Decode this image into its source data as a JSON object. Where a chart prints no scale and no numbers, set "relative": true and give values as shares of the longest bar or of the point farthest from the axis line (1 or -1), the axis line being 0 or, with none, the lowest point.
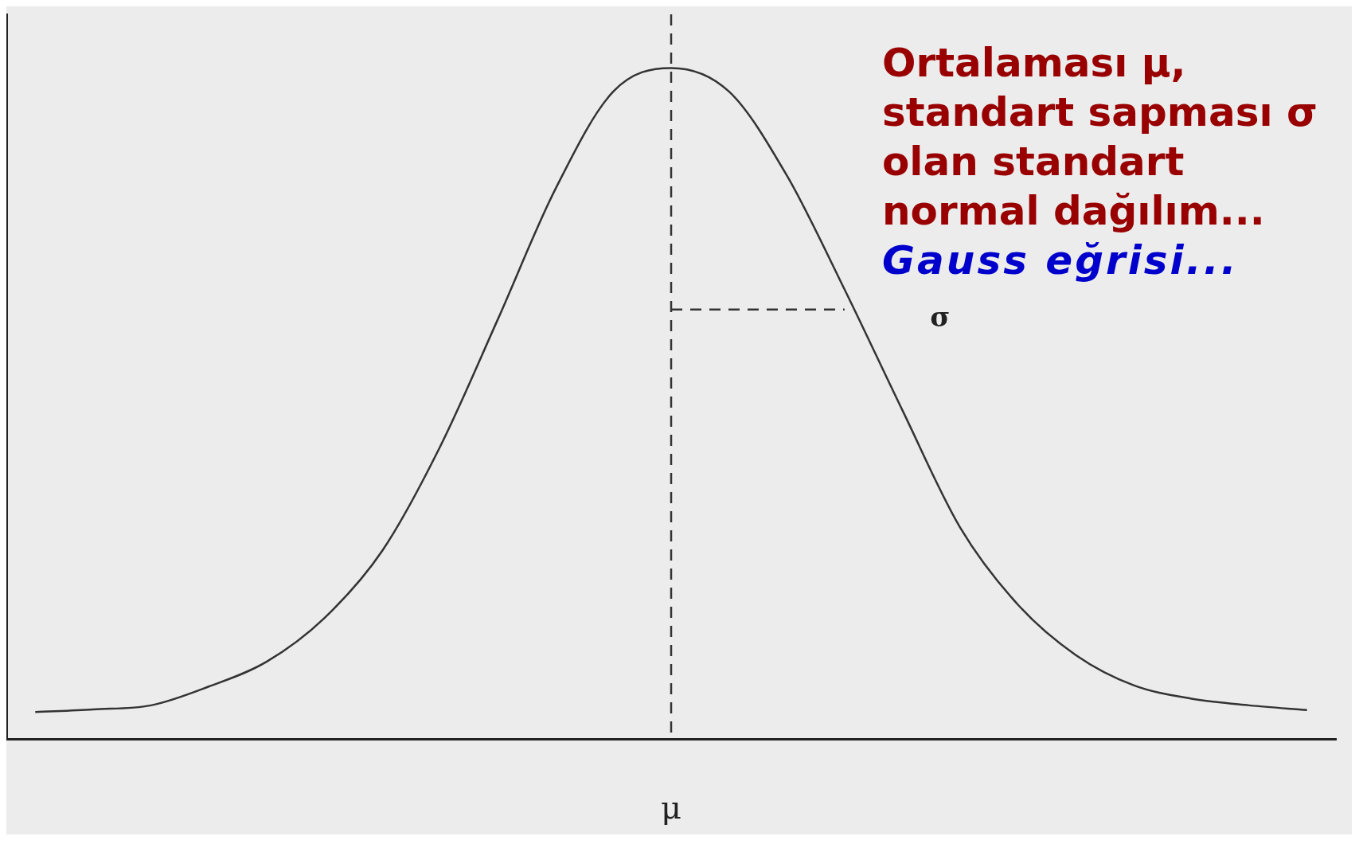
{
  "chart_data": {
    "type": "line",
    "title": "Ortalaması μ, standart sapması σ olan standart normal dağılım...",
    "subtitle": "Gauss eğrisi...",
    "relative": true,
    "categories": [
      null,
      null,
      null,
      null,
      null,
      null,
      null,
      null,
      null,
      null,
      null,
      null,
      null,
      null,
      null,
      null,
      null,
      null,
      null,
      null,
      null,
      null,
      null
    ],
    "series": [
      {
        "color": "#333333",
        "line_style": "solid",
        "values": [
          0.04,
          0.044,
          0.05,
          0.078,
          0.115,
          0.18,
          0.28,
          0.435,
          0.625,
          0.82,
          0.965,
          1,
          0.965,
          0.84,
          0.67,
          0.49,
          0.315,
          0.2,
          0.125,
          0.08,
          0.06,
          0.05,
          0.043
        ]
      },
      {
        "color": "#333333",
        "line_style": "dashed",
        "values": [
          null,
          null,
          null,
          null,
          null,
          null,
          null,
          null,
          null,
          null,
          null,
          0.64,
          null,
          null,
          0.64,
          null,
          null,
          null,
          null,
          null,
          null,
          null,
          null
        ]
      }
    ],
    "annotations": [
      "μ",
      "σ"
    ],
    "grid": false,
    "legend": false,
    "marker": "none"
  }
}
